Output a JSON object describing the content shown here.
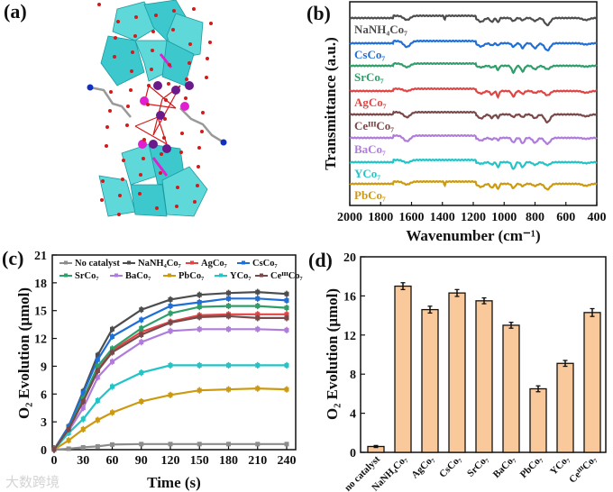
{
  "panels": {
    "a": {
      "label": "(a)"
    },
    "b": {
      "label": "(b)"
    },
    "c": {
      "label": "(c)"
    },
    "d": {
      "label": "(d)"
    }
  },
  "watermark": "大数跨境",
  "chart_data": [
    {
      "panel": "b",
      "type": "line",
      "title": "",
      "xlabel": "Wavenumber (cm⁻¹)",
      "ylabel": "Transmittance (a.u.)",
      "xlim": [
        2000,
        400
      ],
      "xticks": [
        "2000",
        "1800",
        "1600",
        "1400",
        "1200",
        "1000",
        "800",
        "600",
        "400"
      ],
      "grid": false,
      "absorption_bands_cm1": [
        1630,
        1150,
        1080,
        1040,
        940,
        880,
        800,
        720,
        470
      ],
      "series": [
        {
          "name": "NaNH₄Co₇",
          "color": "#4d4d4d",
          "band_1385": true
        },
        {
          "name": "CsCo₇",
          "color": "#1f6fd6",
          "band_1385": false
        },
        {
          "name": "SrCo₇",
          "color": "#2f9e6a",
          "band_1385": false
        },
        {
          "name": "AgCo₇",
          "color": "#e04545",
          "band_1385": false
        },
        {
          "name": "CeᴵᴵᴵCo₇",
          "color": "#7a4848",
          "band_1385": false
        },
        {
          "name": "BaCo₇",
          "color": "#b07cdc",
          "band_1385": false
        },
        {
          "name": "YCo₇",
          "color": "#22c4c8",
          "band_1385": false
        },
        {
          "name": "PbCo₇",
          "color": "#cc9a12",
          "band_1385": true
        }
      ]
    },
    {
      "panel": "c",
      "type": "line",
      "title": "",
      "xlabel": "Time (s)",
      "ylabel": "O₂ Evolution (μmol)",
      "xlim": [
        0,
        240
      ],
      "ylim": [
        0,
        21
      ],
      "xticks": [
        "0",
        "30",
        "60",
        "90",
        "120",
        "150",
        "180",
        "210",
        "240"
      ],
      "yticks": [
        "0",
        "3",
        "6",
        "9",
        "12",
        "15",
        "18",
        "21"
      ],
      "legend_position": "top",
      "x": [
        0,
        15,
        30,
        45,
        60,
        90,
        120,
        150,
        180,
        210,
        240
      ],
      "series": [
        {
          "name": "No catalyst",
          "color": "#8c8c8c",
          "marker": "square",
          "values": [
            0,
            0.1,
            0.25,
            0.35,
            0.55,
            0.6,
            0.6,
            0.6,
            0.6,
            0.6,
            0.6
          ]
        },
        {
          "name": "NaNH₄Co₇",
          "color": "#4d4d4d",
          "marker": "circle",
          "values": [
            0,
            2.5,
            6.3,
            10.2,
            13.0,
            15.1,
            16.2,
            16.7,
            16.9,
            17.0,
            16.8
          ]
        },
        {
          "name": "AgCo₇",
          "color": "#e04545",
          "marker": "triangle-up",
          "values": [
            0,
            2.2,
            5.3,
            8.6,
            10.7,
            12.7,
            13.8,
            14.5,
            14.6,
            14.6,
            14.6
          ]
        },
        {
          "name": "CsCo₇",
          "color": "#1f6fd6",
          "marker": "triangle-down",
          "values": [
            0,
            2.5,
            6.1,
            9.7,
            12.2,
            14.0,
            15.5,
            15.9,
            16.3,
            16.3,
            16.1
          ]
        },
        {
          "name": "SrCo₇",
          "color": "#2f9e6a",
          "marker": "triangle-left",
          "values": [
            0,
            2.2,
            5.5,
            9.0,
            10.9,
            13.1,
            14.7,
            15.4,
            15.5,
            15.5,
            15.3
          ]
        },
        {
          "name": "BaCo₇",
          "color": "#b07cdc",
          "marker": "diamond",
          "values": [
            0,
            2.0,
            4.5,
            7.8,
            9.5,
            11.6,
            12.8,
            13.0,
            13.0,
            13.0,
            12.9
          ]
        },
        {
          "name": "PbCo₇",
          "color": "#cc9a12",
          "marker": "hexagon",
          "values": [
            0,
            1.0,
            2.2,
            3.2,
            4.0,
            5.2,
            5.9,
            6.4,
            6.5,
            6.6,
            6.5
          ]
        },
        {
          "name": "YCo₇",
          "color": "#22c4c8",
          "marker": "triangle-right",
          "values": [
            0,
            1.8,
            3.3,
            5.3,
            6.8,
            8.3,
            9.1,
            9.1,
            9.1,
            9.1,
            9.1
          ]
        },
        {
          "name": "CeᴵᴵᴵCo₇",
          "color": "#7a4848",
          "marker": "star",
          "values": [
            0,
            2.2,
            5.2,
            8.5,
            10.5,
            12.4,
            13.7,
            14.3,
            14.4,
            14.2,
            14.2
          ]
        }
      ],
      "error": 0.35
    },
    {
      "panel": "d",
      "type": "bar",
      "title": "",
      "xlabel": "",
      "ylabel": "O₂ Evolution (μmol)",
      "ylim": [
        0,
        20
      ],
      "yticks": [
        "0",
        "4",
        "8",
        "12",
        "16",
        "20"
      ],
      "bar_color": "#f9c99c",
      "categories": [
        "no catalyst",
        "NaNH₄Co₇",
        "AgCo₇",
        "CsCo₇",
        "SrCo₇",
        "BaCo₇",
        "PbCo₇",
        "YCo₇",
        "CeᴵᴵᴵCo₇"
      ],
      "values": [
        0.6,
        17.0,
        14.6,
        16.3,
        15.5,
        13.0,
        6.5,
        9.1,
        14.3
      ],
      "errors": [
        0.1,
        0.35,
        0.35,
        0.35,
        0.3,
        0.3,
        0.3,
        0.3,
        0.4
      ]
    }
  ]
}
